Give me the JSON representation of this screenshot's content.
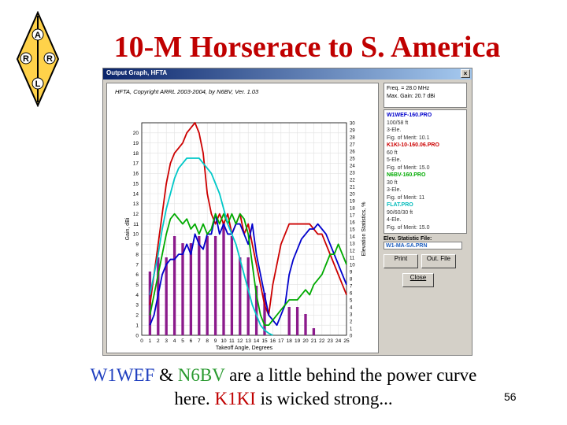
{
  "slide": {
    "title": "10-M Horserace to S. America",
    "page_number": "56",
    "caption": {
      "line1": [
        {
          "text": "W1WEF",
          "color": "blue"
        },
        {
          "text": " & ",
          "color": "black"
        },
        {
          "text": "N6BV",
          "color": "green"
        },
        {
          "text": " are a little behind the power curve",
          "color": "black"
        }
      ],
      "line2": [
        {
          "text": "here. ",
          "color": "black"
        },
        {
          "text": "K1KI",
          "color": "red"
        },
        {
          "text": " is wicked strong...",
          "color": "black"
        }
      ]
    },
    "logo": {
      "letters": [
        "A",
        "R",
        "R",
        "L"
      ],
      "icon": "arrl-diamond-logo"
    }
  },
  "window": {
    "title": "Output Graph, HFTA",
    "close_glyph": "×",
    "copyright": "HFTA, Copyright ARRL 2003-2004, by N6BV, Ver. 1.03"
  },
  "side_panel": {
    "freq": "Freq. = 28.0 MHz",
    "max_gain": "Max. Gain: 20.7 dBi",
    "designs": [
      {
        "file": "W1WEF-160.PRO",
        "color": "#0000cc",
        "lines": [
          "100/58 ft",
          "3-Ele.",
          "Fig. of Merit: 10.1"
        ]
      },
      {
        "file": "K1KI-10-160.06.PRO",
        "color": "#cc0000",
        "lines": [
          "60 ft",
          "5-Ele.",
          "Fig. of Merit: 15.0"
        ]
      },
      {
        "file": "N6BV-160.PRO",
        "color": "#00aa00",
        "lines": [
          "30 ft",
          "3-Ele.",
          "Fig. of Merit: 11"
        ]
      },
      {
        "file": "FLAT.PRO",
        "color": "#00bbbb",
        "lines": [
          "90/60/30 ft",
          "4-Ele.",
          "Fig. of Merit: 15.0"
        ]
      }
    ],
    "elev_label": "Elev. Statistic File:",
    "elev_file": "W1-MA-SA.PRN",
    "buttons": {
      "print": "Print",
      "out_file": "Out. File",
      "close": "Close"
    }
  },
  "chart_data": {
    "type": "line",
    "xlabel": "Takeoff Angle, Degrees",
    "ylabel": "Gain, dBi",
    "y2label": "Elevation Statistics, %",
    "xlim": [
      0,
      25
    ],
    "ylim": [
      0,
      21
    ],
    "y2lim": [
      0,
      30
    ],
    "x_ticks": [
      0,
      1,
      2,
      3,
      4,
      5,
      6,
      7,
      8,
      9,
      10,
      11,
      12,
      13,
      14,
      15,
      16,
      17,
      18,
      19,
      20,
      21,
      22,
      23,
      24,
      25
    ],
    "y_ticks": [
      0,
      1,
      2,
      3,
      4,
      5,
      6,
      7,
      8,
      9,
      10,
      11,
      12,
      13,
      14,
      15,
      16,
      17,
      18,
      19,
      20
    ],
    "y2_ticks": [
      0,
      1,
      2,
      3,
      4,
      5,
      6,
      7,
      8,
      9,
      10,
      11,
      12,
      13,
      14,
      15,
      16,
      17,
      18,
      19,
      20,
      21,
      22,
      23,
      24,
      25,
      26,
      27,
      28,
      29,
      30
    ],
    "grid": true,
    "bars": {
      "name": "Elevation Statistics",
      "color": "#8b1a8b",
      "x": [
        1,
        2,
        3,
        4,
        5,
        6,
        7,
        8,
        9,
        10,
        11,
        12,
        13,
        14,
        15,
        16,
        17,
        18,
        19,
        20,
        21,
        22,
        23,
        24
      ],
      "values": [
        9,
        11,
        11,
        14,
        13,
        13,
        14,
        14,
        14,
        16,
        14,
        11,
        11,
        7,
        6,
        0,
        0,
        4,
        4,
        3,
        1,
        0,
        0,
        0
      ]
    },
    "series": [
      {
        "color": "#cc0000",
        "x": [
          1,
          1.5,
          2,
          2.5,
          3,
          3.5,
          4,
          4.5,
          5,
          5.5,
          6,
          6.5,
          7,
          7.5,
          8,
          8.5,
          9,
          9.5,
          10,
          10.5,
          11,
          11.5,
          12,
          12.5,
          13,
          13.5,
          14,
          14.5,
          15,
          15.5,
          16,
          16.5,
          17,
          17.5,
          18,
          18.5,
          19,
          19.5,
          20,
          20.5,
          21,
          21.5,
          22,
          22.5,
          23,
          23.5,
          24,
          24.5,
          25
        ],
        "values": [
          3,
          6,
          9,
          12,
          15,
          17,
          18,
          18.5,
          19,
          20,
          20.5,
          21,
          20,
          18,
          14,
          12,
          11,
          12,
          11,
          12,
          10,
          11,
          12,
          10,
          11,
          9,
          7,
          5,
          3,
          2,
          5,
          7,
          9,
          10,
          11,
          11,
          11,
          11,
          11,
          11,
          10.5,
          10,
          10,
          9,
          8,
          7,
          6,
          5,
          4
        ]
      },
      {
        "color": "#0000cc",
        "x": [
          1,
          1.5,
          2,
          2.5,
          3,
          3.5,
          4,
          4.5,
          5,
          5.5,
          6,
          6.5,
          7,
          7.5,
          8,
          8.5,
          9,
          9.5,
          10,
          10.5,
          11,
          11.5,
          12,
          12.5,
          13,
          13.5,
          14,
          14.5,
          15,
          15.5,
          16,
          16.5,
          17,
          17.5,
          18,
          18.5,
          19,
          19.5,
          20,
          20.5,
          21,
          21.5,
          22,
          22.5,
          23,
          23.5,
          24,
          24.5,
          25
        ],
        "values": [
          1,
          2,
          4,
          6,
          7,
          7.5,
          7.5,
          8,
          8,
          9,
          8,
          10,
          9,
          8.5,
          10,
          10,
          12,
          10,
          11,
          10,
          10,
          11,
          11,
          10,
          9,
          11,
          8,
          6,
          4,
          2,
          1.5,
          1,
          2,
          3,
          6,
          7.5,
          8.5,
          9.5,
          10,
          10.5,
          10.5,
          11,
          10.5,
          10,
          9,
          8,
          7,
          6,
          5
        ]
      },
      {
        "color": "#00aa00",
        "x": [
          1,
          1.5,
          2,
          2.5,
          3,
          3.5,
          4,
          4.5,
          5,
          5.5,
          6,
          6.5,
          7,
          7.5,
          8,
          8.5,
          9,
          9.5,
          10,
          10.5,
          11,
          11.5,
          12,
          12.5,
          13,
          13.5,
          14,
          14.5,
          15,
          15.5,
          16,
          16.5,
          17,
          17.5,
          18,
          18.5,
          19,
          19.5,
          20,
          20.5,
          21,
          21.5,
          22,
          22.5,
          23,
          23.5,
          24,
          24.5,
          25
        ],
        "values": [
          2,
          4,
          6,
          8,
          10,
          11.5,
          12,
          11.5,
          11,
          11.5,
          10.5,
          11,
          10,
          11,
          10,
          10.5,
          12,
          11,
          12,
          11,
          12,
          11,
          12,
          11.5,
          10,
          7,
          4,
          2,
          1,
          1,
          1.5,
          2,
          2.5,
          3,
          3.5,
          3.5,
          3.5,
          4,
          4.5,
          4,
          5,
          5.5,
          6,
          7,
          8,
          8,
          9,
          8,
          7
        ]
      },
      {
        "color": "#00c8c8",
        "x": [
          1,
          1.5,
          2,
          2.5,
          3,
          3.5,
          4,
          4.5,
          5,
          5.5,
          6,
          6.5,
          7,
          7.5,
          8,
          8.5,
          9,
          9.5,
          10,
          10.5,
          11,
          11.5,
          12,
          12.5,
          13,
          13.5,
          14,
          14.5,
          15,
          15.5,
          16
        ],
        "values": [
          4,
          6,
          8,
          10.5,
          12.5,
          14,
          15.5,
          16.5,
          17,
          17.5,
          17.5,
          17.5,
          17.5,
          17,
          16.5,
          16,
          15,
          14,
          12.5,
          11,
          10,
          9,
          7.5,
          6,
          4.5,
          3,
          2,
          1,
          0.5,
          0.2,
          0
        ]
      }
    ]
  }
}
